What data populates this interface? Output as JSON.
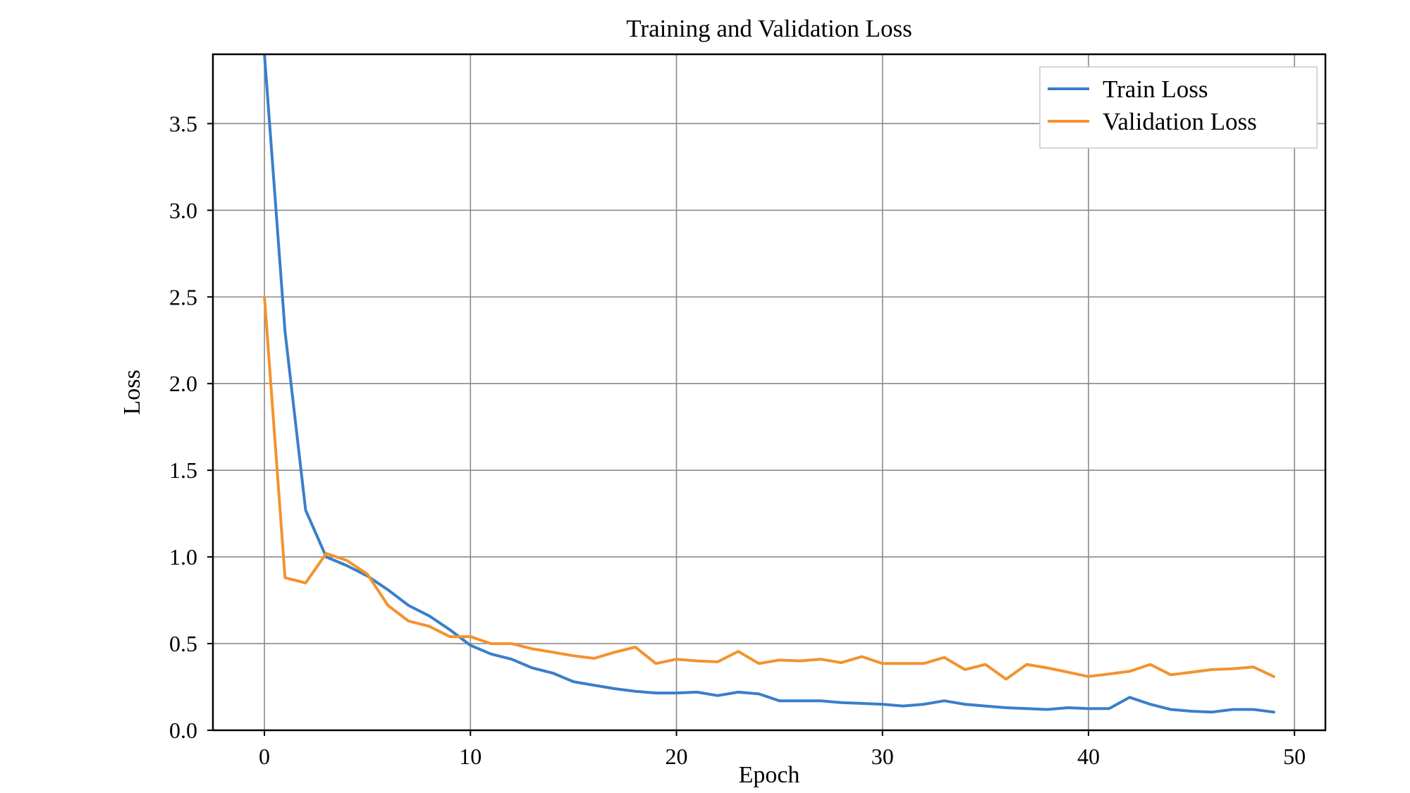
{
  "chart_data": {
    "type": "line",
    "title": "Training and Validation Loss",
    "xlabel": "Epoch",
    "ylabel": "Loss",
    "xlim": [
      -2.5,
      51.5
    ],
    "ylim": [
      0.0,
      3.9
    ],
    "xticks": [
      0,
      10,
      20,
      30,
      40,
      50
    ],
    "xtick_labels": [
      "0",
      "10",
      "20",
      "30",
      "40",
      "50"
    ],
    "yticks": [
      0.0,
      0.5,
      1.0,
      1.5,
      2.0,
      2.5,
      3.0,
      3.5
    ],
    "ytick_labels": [
      "0.0",
      "0.5",
      "1.0",
      "1.5",
      "2.0",
      "2.5",
      "3.0",
      "3.5"
    ],
    "grid": true,
    "legend_position": "top-right",
    "x": [
      0,
      1,
      2,
      3,
      4,
      5,
      6,
      7,
      8,
      9,
      10,
      11,
      12,
      13,
      14,
      15,
      16,
      17,
      18,
      19,
      20,
      21,
      22,
      23,
      24,
      25,
      26,
      27,
      28,
      29,
      30,
      31,
      32,
      33,
      34,
      35,
      36,
      37,
      38,
      39,
      40,
      41,
      42,
      43,
      44,
      45,
      46,
      47,
      48,
      49
    ],
    "series": [
      {
        "name": "Train Loss",
        "color": "#3a7ecb",
        "values": [
          3.9,
          2.3,
          1.27,
          1.0,
          0.95,
          0.89,
          0.81,
          0.72,
          0.66,
          0.58,
          0.49,
          0.44,
          0.41,
          0.36,
          0.33,
          0.28,
          0.26,
          0.24,
          0.225,
          0.215,
          0.215,
          0.22,
          0.2,
          0.22,
          0.21,
          0.17,
          0.17,
          0.17,
          0.16,
          0.155,
          0.15,
          0.14,
          0.15,
          0.17,
          0.15,
          0.14,
          0.13,
          0.125,
          0.12,
          0.13,
          0.125,
          0.125,
          0.19,
          0.15,
          0.12,
          0.11,
          0.105,
          0.12,
          0.12,
          0.105
        ]
      },
      {
        "name": "Validation Loss",
        "color": "#f4922e",
        "values": [
          2.5,
          0.88,
          0.85,
          1.02,
          0.98,
          0.9,
          0.72,
          0.63,
          0.6,
          0.54,
          0.54,
          0.5,
          0.5,
          0.47,
          0.45,
          0.43,
          0.415,
          0.45,
          0.48,
          0.385,
          0.41,
          0.4,
          0.395,
          0.455,
          0.385,
          0.405,
          0.4,
          0.41,
          0.39,
          0.425,
          0.385,
          0.385,
          0.385,
          0.42,
          0.35,
          0.38,
          0.295,
          0.38,
          0.36,
          0.335,
          0.31,
          0.325,
          0.34,
          0.38,
          0.32,
          0.335,
          0.35,
          0.355,
          0.365,
          0.31
        ]
      }
    ]
  }
}
